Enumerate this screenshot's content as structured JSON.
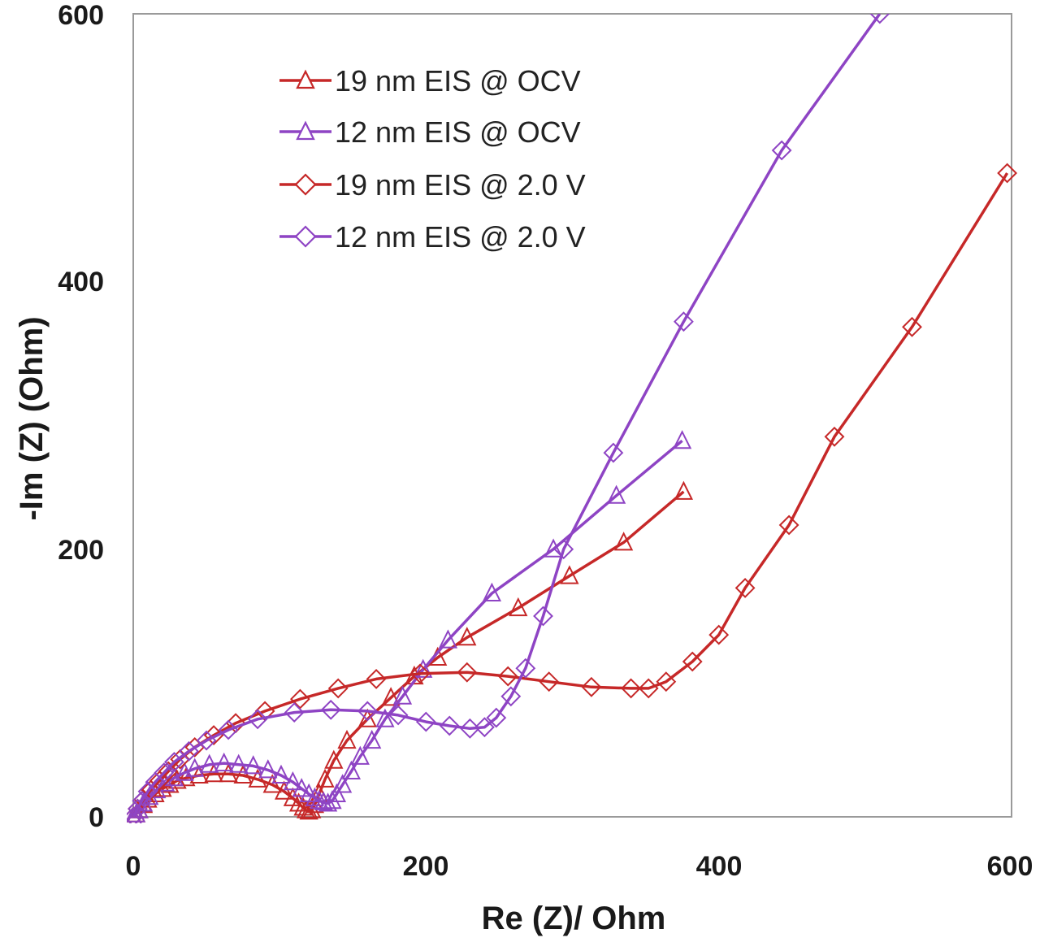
{
  "chart_data": {
    "type": "scatter",
    "xlabel": "Re (Z)/ Ohm",
    "ylabel": "-Im (Z) (Ohm)",
    "xlim": [
      0,
      600
    ],
    "ylim": [
      0,
      600
    ],
    "x_ticks": [
      "0",
      "200",
      "400",
      "600"
    ],
    "y_ticks": [
      "0",
      "200",
      "400",
      "600"
    ],
    "grid": false,
    "legend_position": "top-left",
    "series": [
      {
        "name": "19 nm EIS @ OCV",
        "color": "#c62828",
        "marker": "triangle",
        "points": [
          [
            0,
            0
          ],
          [
            2,
            2
          ],
          [
            4,
            5
          ],
          [
            7,
            9
          ],
          [
            10,
            13
          ],
          [
            15,
            17
          ],
          [
            20,
            21
          ],
          [
            25,
            24
          ],
          [
            30,
            27
          ],
          [
            36,
            29
          ],
          [
            45,
            31
          ],
          [
            55,
            32
          ],
          [
            65,
            32
          ],
          [
            75,
            31
          ],
          [
            85,
            28
          ],
          [
            95,
            24
          ],
          [
            103,
            19
          ],
          [
            109,
            14
          ],
          [
            113,
            10
          ],
          [
            116,
            7
          ],
          [
            118,
            5
          ],
          [
            120,
            4
          ],
          [
            122,
            5
          ],
          [
            124,
            9
          ],
          [
            127,
            17
          ],
          [
            131,
            28
          ],
          [
            137,
            42
          ],
          [
            146,
            57
          ],
          [
            160,
            73
          ],
          [
            176,
            89
          ],
          [
            192,
            105
          ],
          [
            208,
            119
          ],
          [
            228,
            134
          ],
          [
            263,
            156
          ],
          [
            298,
            180
          ],
          [
            335,
            205
          ],
          [
            376,
            243
          ]
        ]
      },
      {
        "name": "12 nm EIS @ OCV",
        "color": "#8e44c4",
        "marker": "triangle",
        "points": [
          [
            0,
            0
          ],
          [
            2,
            2
          ],
          [
            4,
            5
          ],
          [
            7,
            10
          ],
          [
            11,
            15
          ],
          [
            16,
            20
          ],
          [
            22,
            25
          ],
          [
            28,
            29
          ],
          [
            35,
            33
          ],
          [
            42,
            36
          ],
          [
            52,
            39
          ],
          [
            62,
            40
          ],
          [
            72,
            39
          ],
          [
            82,
            38
          ],
          [
            92,
            35
          ],
          [
            101,
            31
          ],
          [
            109,
            26
          ],
          [
            115,
            21
          ],
          [
            120,
            17
          ],
          [
            124,
            14
          ],
          [
            127,
            12
          ],
          [
            130,
            11
          ],
          [
            133,
            10
          ],
          [
            136,
            12
          ],
          [
            139,
            17
          ],
          [
            143,
            24
          ],
          [
            149,
            34
          ],
          [
            155,
            45
          ],
          [
            163,
            57
          ],
          [
            172,
            73
          ],
          [
            184,
            90
          ],
          [
            198,
            110
          ],
          [
            215,
            132
          ],
          [
            245,
            167
          ],
          [
            287,
            200
          ],
          [
            330,
            240
          ],
          [
            375,
            281
          ]
        ]
      },
      {
        "name": "19 nm EIS @ 2.0 V",
        "color": "#c62828",
        "marker": "diamond",
        "points": [
          [
            0,
            0
          ],
          [
            3,
            6
          ],
          [
            7,
            13
          ],
          [
            12,
            20
          ],
          [
            18,
            27
          ],
          [
            24,
            34
          ],
          [
            32,
            43
          ],
          [
            42,
            52
          ],
          [
            55,
            61
          ],
          [
            70,
            70
          ],
          [
            90,
            79
          ],
          [
            114,
            88
          ],
          [
            140,
            96
          ],
          [
            166,
            103
          ],
          [
            196,
            107
          ],
          [
            228,
            108
          ],
          [
            256,
            105
          ],
          [
            284,
            101
          ],
          [
            313,
            97
          ],
          [
            340,
            96
          ],
          [
            352,
            96
          ],
          [
            364,
            101
          ],
          [
            382,
            116
          ],
          [
            400,
            136
          ],
          [
            418,
            171
          ],
          [
            448,
            218
          ],
          [
            479,
            284
          ],
          [
            532,
            366
          ],
          [
            597,
            481
          ]
        ]
      },
      {
        "name": "12 nm EIS @ 2.0 V",
        "color": "#8e44c4",
        "marker": "diamond",
        "points": [
          [
            0,
            0
          ],
          [
            3,
            6
          ],
          [
            6,
            12
          ],
          [
            10,
            19
          ],
          [
            15,
            26
          ],
          [
            21,
            33
          ],
          [
            28,
            41
          ],
          [
            38,
            49
          ],
          [
            50,
            57
          ],
          [
            65,
            65
          ],
          [
            85,
            73
          ],
          [
            110,
            78
          ],
          [
            135,
            80
          ],
          [
            160,
            79
          ],
          [
            181,
            76
          ],
          [
            200,
            71
          ],
          [
            216,
            68
          ],
          [
            230,
            66
          ],
          [
            240,
            67
          ],
          [
            248,
            74
          ],
          [
            258,
            90
          ],
          [
            268,
            111
          ],
          [
            280,
            150
          ],
          [
            294,
            200
          ],
          [
            328,
            272
          ],
          [
            376,
            370
          ],
          [
            443,
            498
          ],
          [
            510,
            600
          ]
        ]
      }
    ]
  }
}
